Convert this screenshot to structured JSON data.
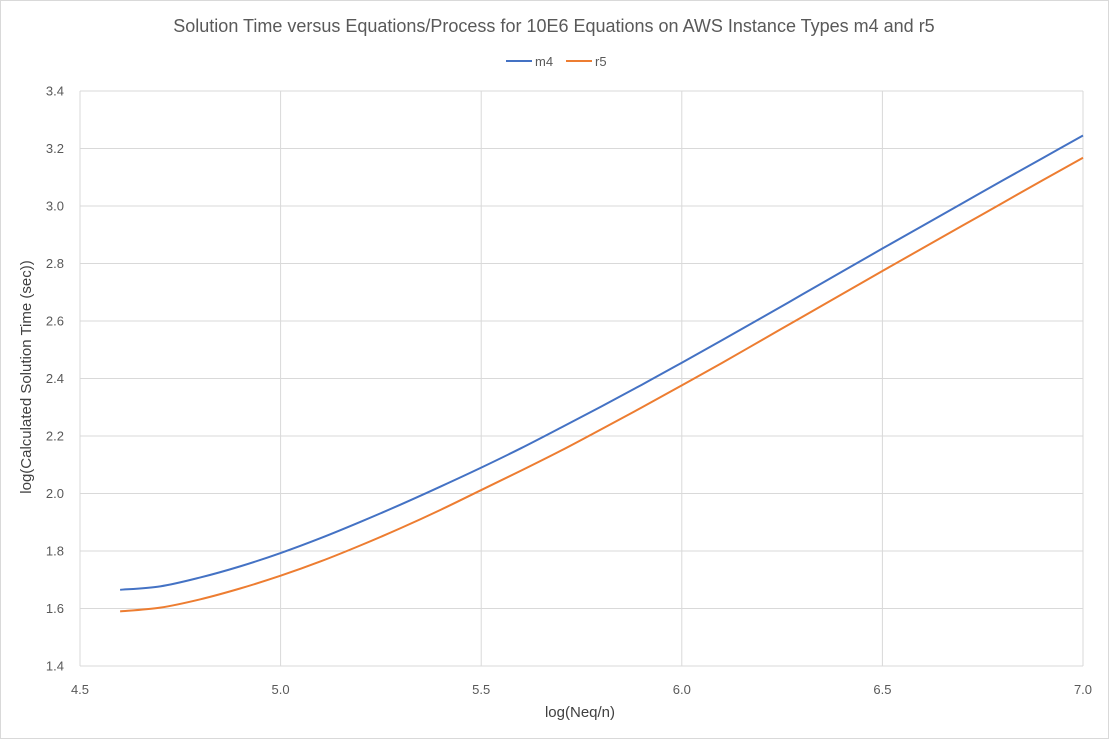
{
  "chart_data": {
    "type": "line",
    "title": "Solution Time versus Equations/Process for 10E6 Equations on AWS Instance Types m4 and r5",
    "xlabel": "log(Neq/n)",
    "ylabel": "log(Calculated Solution Time (sec))",
    "xlim": [
      4.5,
      7.0
    ],
    "ylim": [
      1.4,
      3.4
    ],
    "xticks": [
      "4.5",
      "5.0",
      "5.5",
      "6.0",
      "6.5",
      "7.0"
    ],
    "yticks": [
      "1.4",
      "1.6",
      "1.8",
      "2.0",
      "2.2",
      "2.4",
      "2.6",
      "2.8",
      "3.0",
      "3.2",
      "3.4"
    ],
    "grid": true,
    "legend_position": "top-center",
    "series": [
      {
        "name": "m4",
        "color": "#4472c4",
        "x": [
          4.6,
          4.7,
          4.8,
          4.9,
          5.0,
          5.1,
          5.2,
          5.3,
          5.4,
          5.5,
          5.6,
          5.7,
          5.8,
          5.9,
          6.0,
          6.1,
          6.2,
          6.3,
          6.4,
          6.5,
          6.6,
          6.7,
          6.8,
          6.9,
          7.0
        ],
        "y": [
          1.665,
          1.677,
          1.708,
          1.747,
          1.793,
          1.845,
          1.902,
          1.962,
          2.025,
          2.09,
          2.158,
          2.23,
          2.303,
          2.378,
          2.455,
          2.533,
          2.612,
          2.692,
          2.772,
          2.852,
          2.931,
          3.01,
          3.089,
          3.167,
          3.245
        ]
      },
      {
        "name": "r5",
        "color": "#ed7d31",
        "x": [
          4.6,
          4.7,
          4.8,
          4.9,
          5.0,
          5.1,
          5.2,
          5.3,
          5.4,
          5.5,
          5.6,
          5.7,
          5.8,
          5.9,
          6.0,
          6.1,
          6.2,
          6.3,
          6.4,
          6.5,
          6.6,
          6.7,
          6.8,
          6.9,
          7.0
        ],
        "y": [
          1.59,
          1.603,
          1.632,
          1.67,
          1.714,
          1.764,
          1.82,
          1.88,
          1.944,
          2.012,
          2.08,
          2.15,
          2.224,
          2.299,
          2.376,
          2.454,
          2.534,
          2.614,
          2.694,
          2.774,
          2.853,
          2.932,
          3.011,
          3.09,
          3.168
        ]
      }
    ]
  }
}
